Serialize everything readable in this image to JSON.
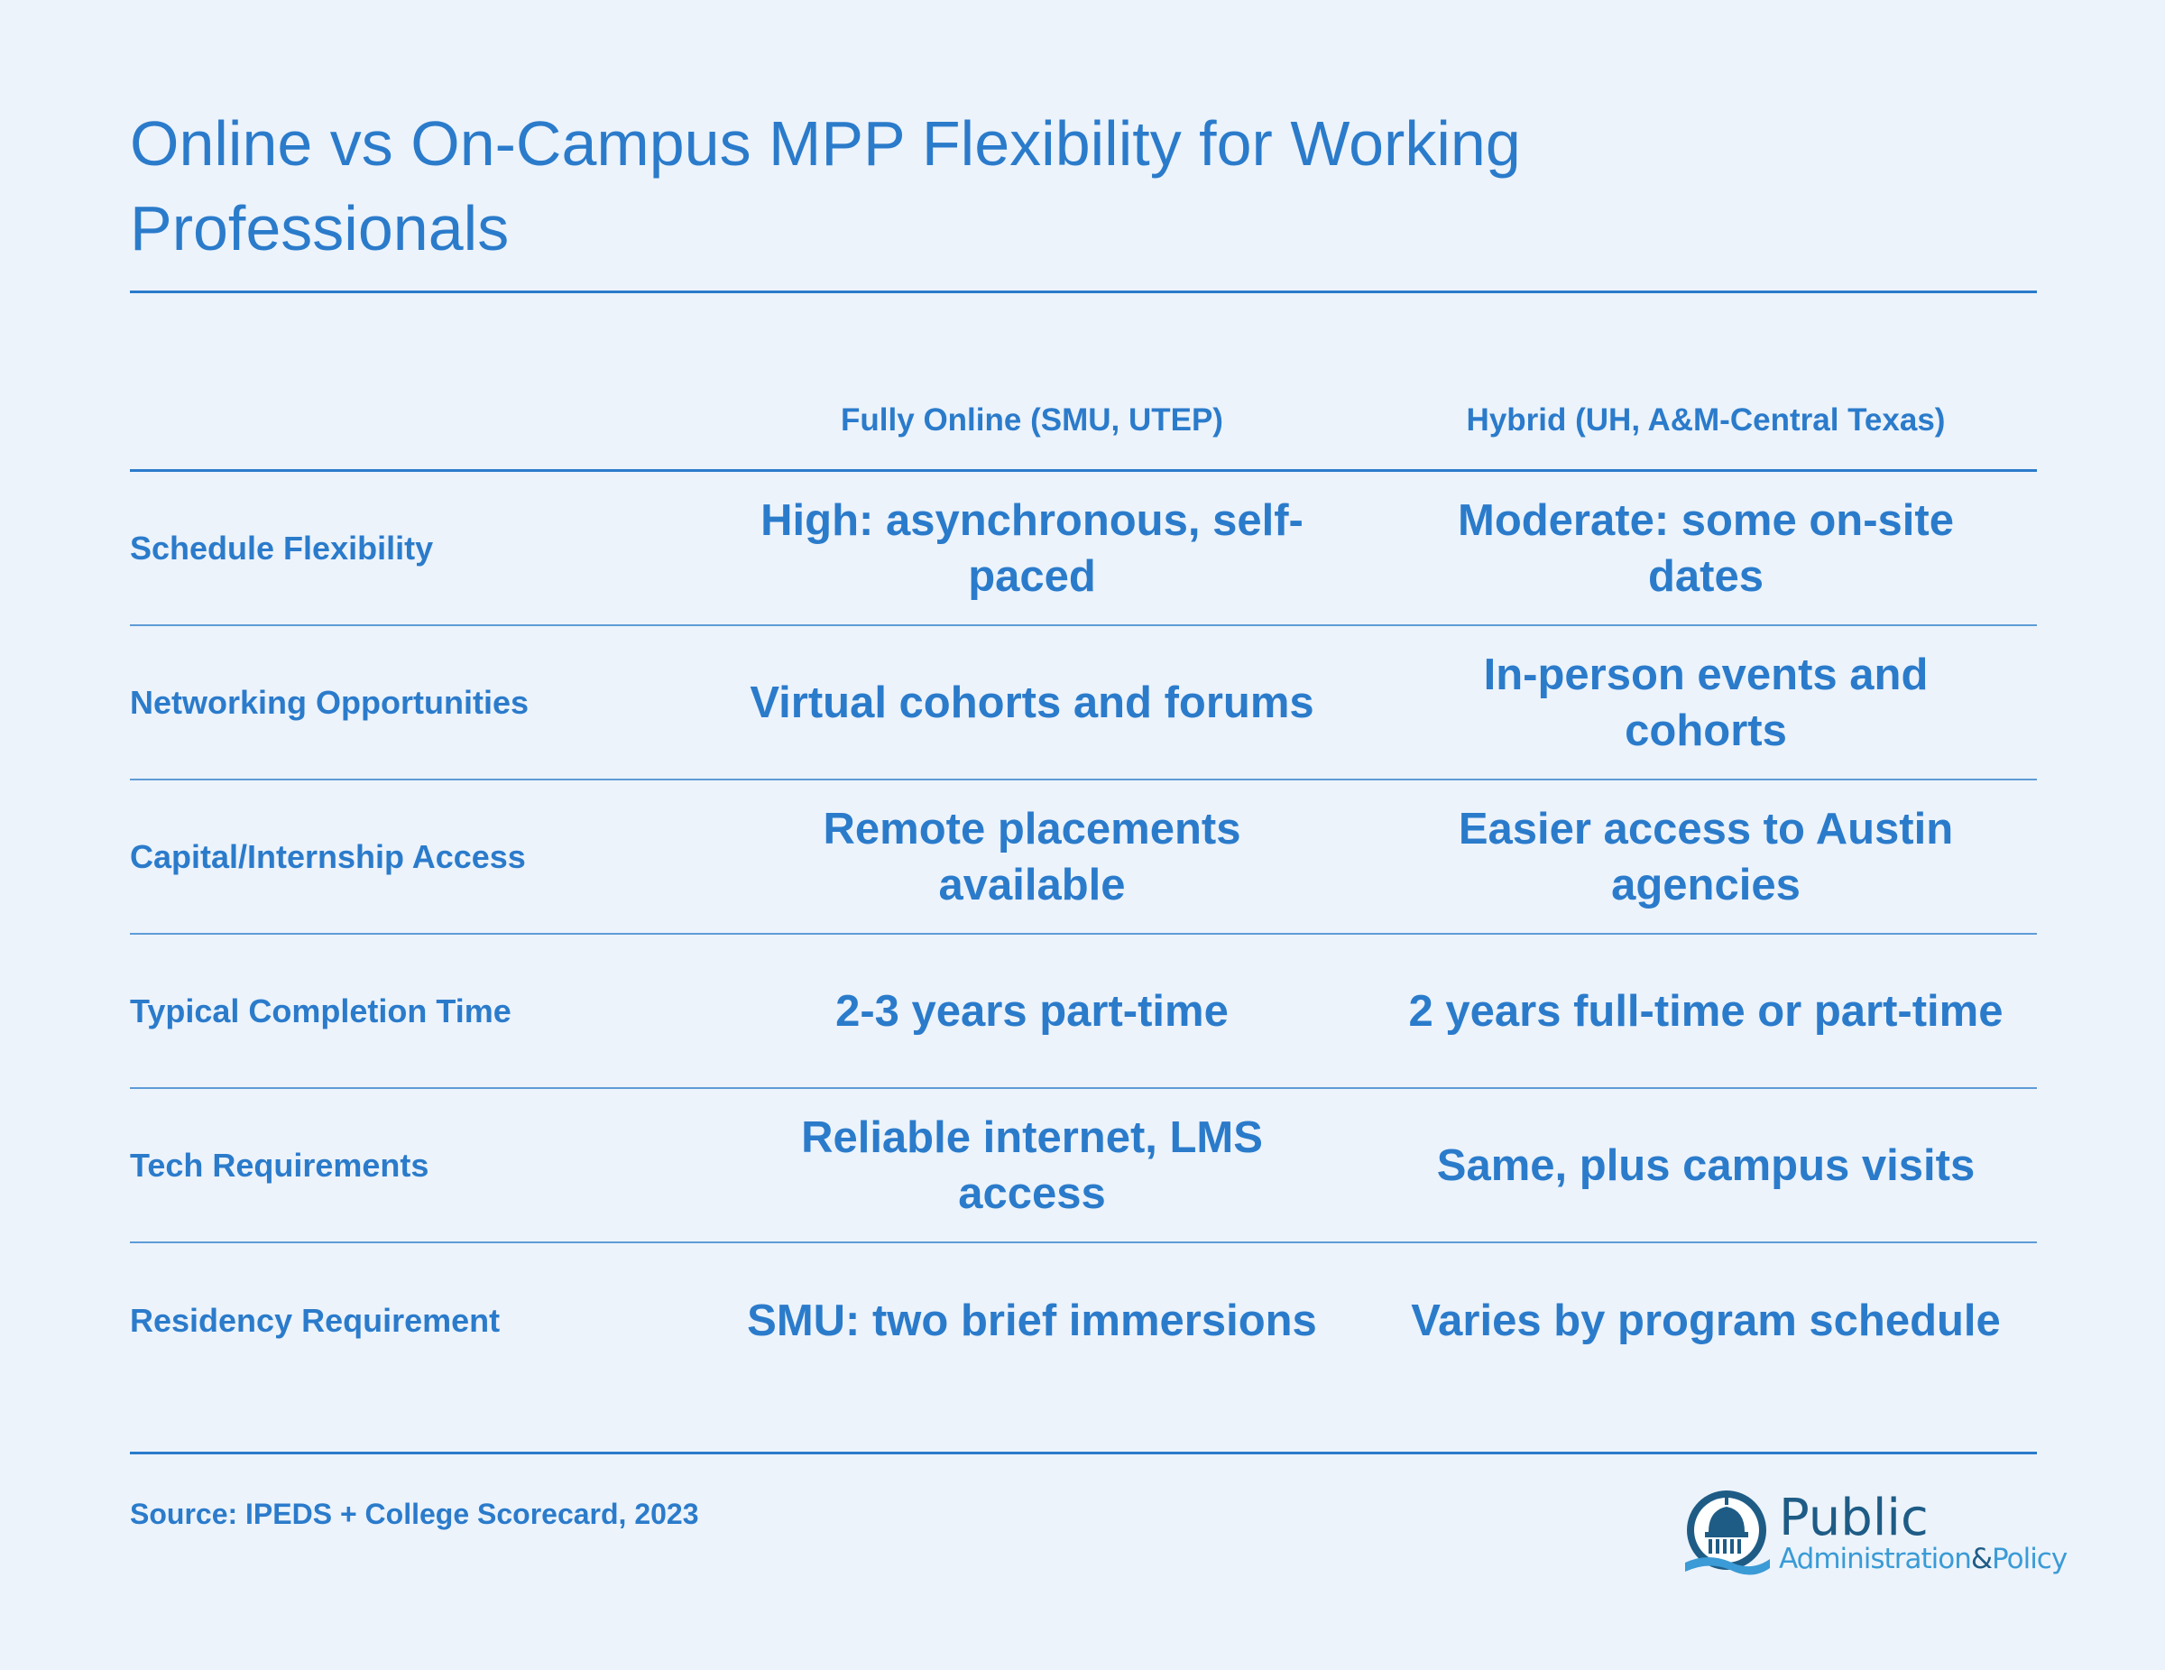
{
  "title": "Online vs On-Campus MPP Flexibility for Working Professionals",
  "chart_data": {
    "type": "table",
    "columns": [
      "",
      "Fully Online (SMU, UTEP)",
      "Hybrid (UH, A&M-Central Texas)"
    ],
    "rows": [
      {
        "label": "Schedule Flexibility",
        "online": "High: asynchronous, self-paced",
        "hybrid": "Moderate: some on-site dates"
      },
      {
        "label": "Networking Opportunities",
        "online": "Virtual cohorts and forums",
        "hybrid": "In-person events and cohorts"
      },
      {
        "label": "Capital/Internship Access",
        "online": "Remote placements available",
        "hybrid": "Easier access to Austin agencies"
      },
      {
        "label": "Typical Completion Time",
        "online": "2-3 years part-time",
        "hybrid": "2 years full-time or part-time"
      },
      {
        "label": "Tech Requirements",
        "online": "Reliable internet, LMS access",
        "hybrid": "Same, plus campus visits"
      },
      {
        "label": "Residency Requirement",
        "online": "SMU: two brief immersions",
        "hybrid": "Varies by program schedule"
      }
    ]
  },
  "source": "Source: IPEDS + College Scorecard, 2023",
  "logo": {
    "word1": "Public",
    "word2": "Administration",
    "amp": "&",
    "word3": "Policy",
    "icon": "capitol-dome-icon"
  },
  "colors": {
    "accent": "#2b7bcb",
    "background": "#ecf3fb",
    "logo_dark": "#1e5c86",
    "logo_light": "#3a9bd6"
  }
}
